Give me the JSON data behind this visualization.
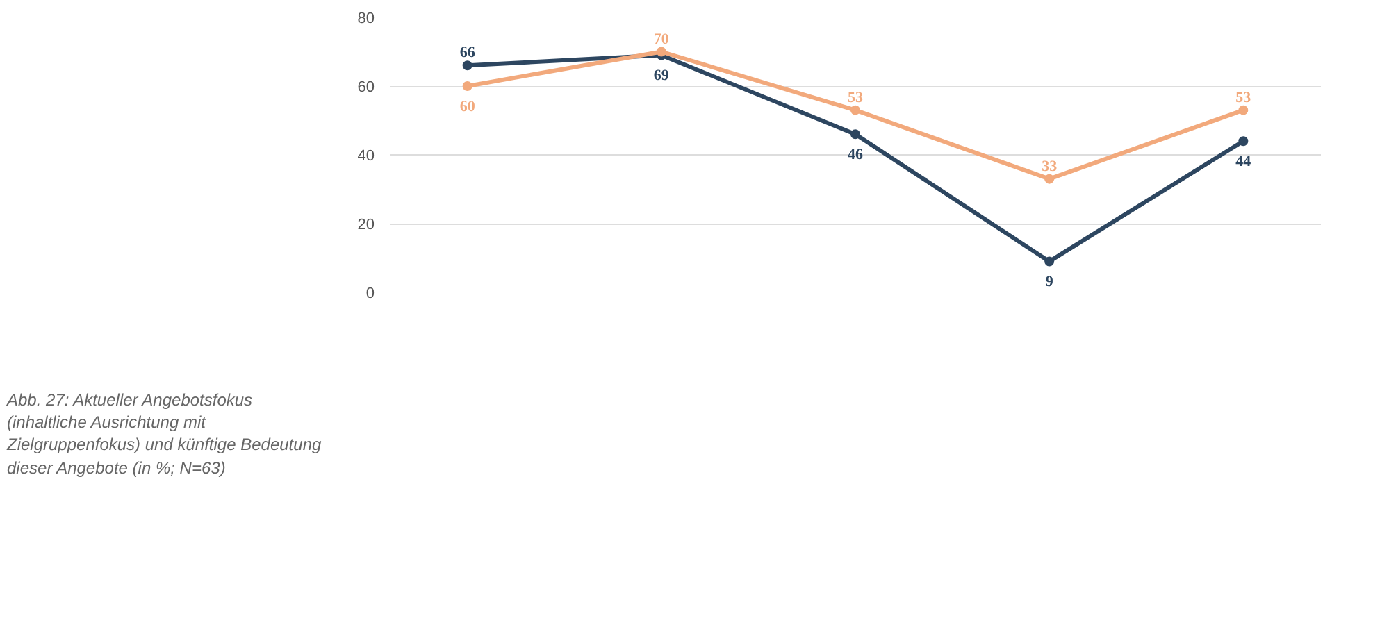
{
  "chart_data": {
    "type": "line",
    "categories": [
      null,
      null,
      null,
      null,
      null
    ],
    "series": [
      {
        "color": "#2d4660",
        "values": [
          66,
          69,
          46,
          9,
          44
        ]
      },
      {
        "color": "#f2a97c",
        "values": [
          60,
          70,
          53,
          33,
          53
        ]
      }
    ],
    "ylim": [
      0,
      80
    ],
    "yticks": [
      0,
      20,
      40,
      60,
      80
    ],
    "grid": "y",
    "marker": "circle",
    "line_style": "solid",
    "data_labels": true,
    "annotations": [
      "Abb. 27: Aktueller Angebotsfokus (inhaltliche Ausrichtung mit Zielgruppenfokus) und künftige Bedeutung dieser Angebote (in %; N=63)"
    ]
  }
}
